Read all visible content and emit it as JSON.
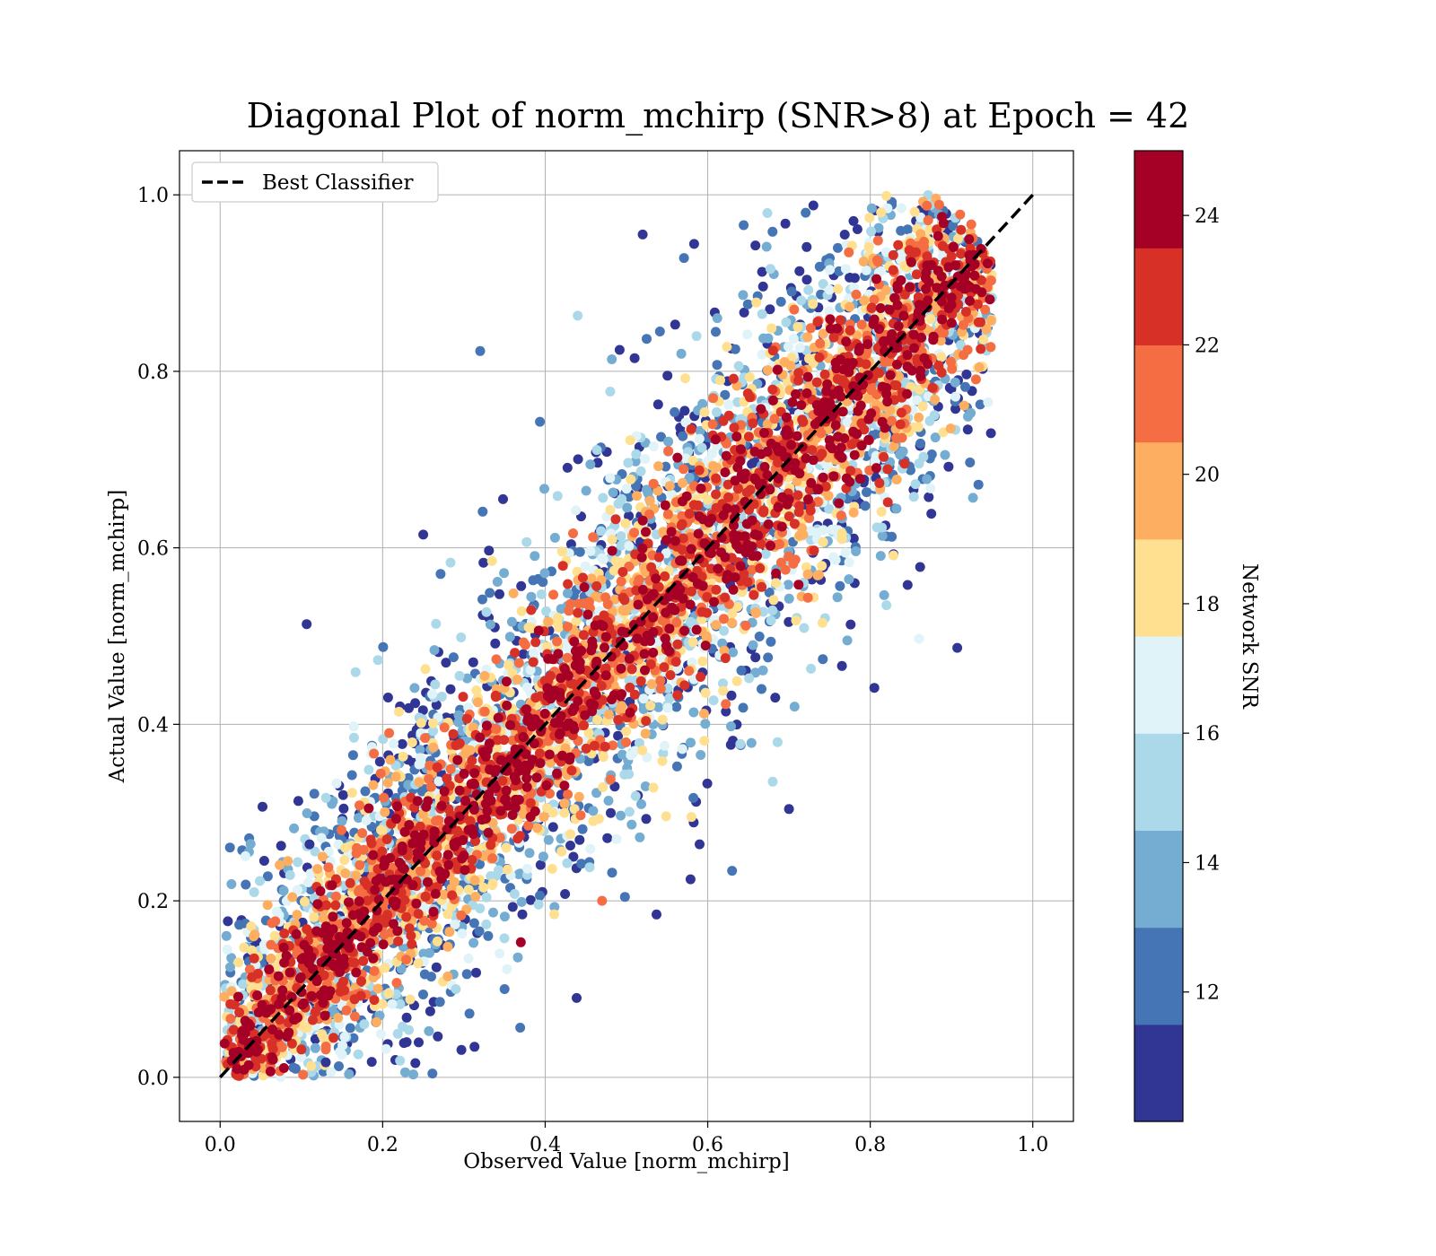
{
  "chart_data": {
    "type": "scatter",
    "title": "Diagonal Plot of norm_mchirp (SNR>8) at Epoch = 42",
    "xlabel": "Observed Value [norm_mchirp]",
    "ylabel": "Actual Value [norm_mchirp]",
    "xlim": [
      -0.05,
      1.05
    ],
    "ylim": [
      -0.05,
      1.05
    ],
    "xticks": [
      "0.0",
      "0.2",
      "0.4",
      "0.6",
      "0.8",
      "1.0"
    ],
    "yticks": [
      "0.0",
      "0.2",
      "0.4",
      "0.6",
      "0.8",
      "1.0"
    ],
    "grid": true,
    "legend": {
      "placement": "top-left",
      "entries": [
        "Best Classifier"
      ]
    },
    "reference_line": {
      "name": "Best Classifier",
      "x": [
        0,
        1
      ],
      "y": [
        0,
        1
      ],
      "style": "dashed",
      "color": "#000000"
    },
    "colorbar": {
      "label": "Network SNR",
      "range": [
        10,
        25
      ],
      "ticks": [
        "12",
        "14",
        "16",
        "18",
        "20",
        "22",
        "24"
      ],
      "tick_values": [
        12,
        14,
        16,
        18,
        20,
        22,
        24
      ],
      "bands": [
        "#313695",
        "#4575b4",
        "#74add1",
        "#abd9e9",
        "#e0f3f8",
        "#fee090",
        "#fdae61",
        "#f46d43",
        "#d73027",
        "#a50026"
      ]
    },
    "series": [
      {
        "color_by": "Network SNR",
        "points": [
          {
            "x": 0.52,
            "y": 0.955,
            "c": 10.5
          },
          {
            "x": 0.32,
            "y": 0.823,
            "c": 11.5
          },
          {
            "x": 0.44,
            "y": 0.863,
            "c": 15.5
          },
          {
            "x": 0.25,
            "y": 0.615,
            "c": 10.5
          },
          {
            "x": 0.24,
            "y": 0.424,
            "c": 10.8
          },
          {
            "x": 0.11,
            "y": 0.264,
            "c": 10.5
          },
          {
            "x": 0.13,
            "y": 0.017,
            "c": 10.5
          },
          {
            "x": 0.17,
            "y": 0.026,
            "c": 15.5
          },
          {
            "x": 0.29,
            "y": 0.1,
            "c": 15.5
          },
          {
            "x": 0.35,
            "y": 0.1,
            "c": 11.5
          },
          {
            "x": 0.37,
            "y": 0.153,
            "c": 24.5
          },
          {
            "x": 0.47,
            "y": 0.2,
            "c": 20.5
          },
          {
            "x": 0.59,
            "y": 0.264,
            "c": 10.5
          },
          {
            "x": 0.63,
            "y": 0.234,
            "c": 11.5
          },
          {
            "x": 0.7,
            "y": 0.304,
            "c": 10.5
          },
          {
            "x": 0.86,
            "y": 0.497,
            "c": 16.5
          },
          {
            "x": 0.82,
            "y": 0.535,
            "c": 14.5
          },
          {
            "x": 0.92,
            "y": 0.734,
            "c": 10.5
          },
          {
            "x": 0.73,
            "y": 0.988,
            "c": 10.5
          },
          {
            "x": 0.56,
            "y": 0.853,
            "c": 10.5
          },
          {
            "x": 0.51,
            "y": 0.815,
            "c": 10.5
          },
          {
            "x": 0.48,
            "y": 0.777,
            "c": 15.5
          },
          {
            "x": 0.68,
            "y": 0.335,
            "c": 14.5
          },
          {
            "x": 0.58,
            "y": 0.295,
            "c": 18.5
          }
        ]
      }
    ]
  }
}
